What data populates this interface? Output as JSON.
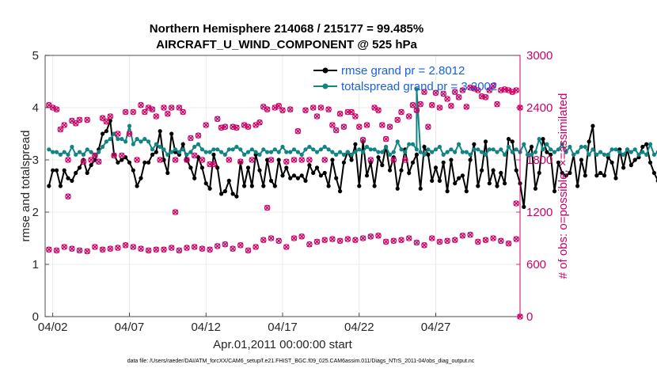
{
  "chart_data": {
    "type": "line",
    "title": "Northern Hemisphere 214068 / 215177 = 99.485%",
    "subtitle": "AIRCRAFT_U_WIND_COMPONENT @ 525 hPa",
    "xlabel": "Apr.01,2011 00:00:00 start",
    "ylabel": "rmse and totalspread",
    "y2label": "# of obs: o=possible; ×=assimilated",
    "footer": "data file: /Users/raeder/DAI/ATM_forcXX/CAM6_setup/f.e21.FHIST_BGC.f09_025.CAM6assim.011/Diags_NTrS_2011-04/obs_diag_output.nc",
    "xlim": [
      1.5,
      32.5
    ],
    "ylim": [
      0,
      5
    ],
    "y2lim": [
      0,
      3000
    ],
    "x_ticks": [
      2,
      7,
      12,
      17,
      22,
      27
    ],
    "x_tick_labels": [
      "04/02",
      "04/07",
      "04/12",
      "04/17",
      "04/22",
      "04/27"
    ],
    "y_ticks": [
      0,
      1,
      2,
      3,
      4,
      5
    ],
    "y_tick_labels": [
      "0",
      "1",
      "2",
      "3",
      "4",
      "5"
    ],
    "y2_ticks": [
      0,
      600,
      1200,
      1800,
      2400,
      3000
    ],
    "y2_tick_labels": [
      "0",
      "600",
      "1200",
      "1800",
      "2400",
      "3000"
    ],
    "x_unit": "days since Apr.01,2011 00:00:00",
    "x_step": 0.25,
    "x_start": 1.75,
    "series": [
      {
        "name": "rmse grand pr = 2.8012",
        "color": "#000000",
        "marker": "dot",
        "values": [
          2.5,
          2.8,
          2.8,
          2.5,
          2.8,
          2.65,
          2.6,
          2.75,
          2.85,
          3.0,
          2.75,
          2.9,
          3.0,
          3.2,
          3.5,
          3.55,
          3.75,
          3.1,
          2.95,
          3.0,
          3.05,
          2.95,
          2.8,
          2.5,
          2.65,
          2.95,
          2.95,
          3.1,
          3.15,
          3.55,
          3.0,
          2.75,
          3.5,
          3.15,
          3.1,
          3.3,
          3.0,
          2.85,
          2.65,
          3.05,
          2.85,
          2.55,
          2.45,
          3.1,
          2.85,
          2.35,
          2.4,
          2.6,
          2.35,
          2.3,
          2.95,
          2.5,
          2.85,
          2.5,
          3.1,
          2.8,
          2.5,
          3.0,
          2.6,
          2.5,
          3.0,
          2.7,
          2.85,
          2.65,
          2.7,
          2.65,
          2.7,
          2.6,
          2.9,
          2.75,
          2.85,
          2.7,
          2.75,
          2.5,
          3.0,
          2.65,
          2.4,
          2.95,
          3.15,
          3.0,
          3.3,
          2.5,
          3.35,
          2.7,
          2.95,
          2.5,
          3.05,
          2.9,
          3.25,
          2.8,
          3.05,
          2.45,
          2.8,
          3.2,
          2.75,
          2.95,
          3.1,
          2.45,
          3.25,
          3.1,
          2.6,
          2.85,
          2.6,
          2.95,
          2.4,
          3.0,
          2.55,
          2.65,
          2.7,
          2.4,
          3.0,
          3.3,
          2.5,
          2.8,
          3.35,
          2.55,
          2.8,
          2.5,
          2.75,
          2.55,
          3.4,
          3.35,
          2.8,
          2.55,
          2.1,
          3.1,
          3.25,
          2.45,
          2.75,
          3.4,
          3.15,
          3.1,
          2.4,
          2.95,
          2.75,
          2.7,
          2.75,
          3.1,
          2.5,
          3.0,
          2.7,
          3.35,
          3.65,
          2.7,
          2.75,
          2.7,
          3.05,
          2.95,
          2.65,
          3.2,
          2.85,
          3.2,
          2.9,
          3.0,
          3.05,
          3.25,
          3.3,
          2.95,
          2.75,
          2.6,
          3.15,
          3.0,
          3.0,
          2.75,
          3.0,
          2.6
        ]
      },
      {
        "name": "totalspread grand pr = 3.2002",
        "color": "#138484",
        "marker": "dot",
        "values": [
          3.2,
          3.15,
          3.15,
          3.1,
          3.15,
          3.1,
          3.25,
          3.1,
          3.15,
          3.1,
          3.2,
          3.15,
          3.1,
          3.15,
          3.25,
          3.35,
          3.4,
          3.5,
          3.4,
          3.4,
          3.35,
          3.65,
          3.3,
          3.4,
          3.35,
          3.4,
          3.35,
          3.2,
          3.3,
          3.25,
          3.2,
          3.1,
          3.15,
          3.2,
          3.15,
          3.2,
          3.1,
          3.15,
          3.25,
          3.3,
          3.2,
          3.15,
          3.15,
          3.2,
          3.2,
          3.15,
          3.1,
          3.2,
          3.2,
          3.25,
          3.2,
          3.1,
          3.15,
          3.2,
          3.15,
          3.1,
          3.2,
          3.15,
          3.15,
          3.2,
          3.15,
          3.25,
          3.15,
          3.15,
          3.2,
          3.15,
          3.1,
          3.2,
          3.25,
          3.2,
          3.15,
          3.2,
          3.25,
          3.2,
          3.15,
          3.1,
          3.15,
          3.1,
          3.15,
          3.1,
          3.15,
          3.2,
          3.15,
          3.25,
          3.2,
          3.2,
          3.15,
          3.15,
          3.25,
          3.1,
          3.15,
          3.35,
          3.2,
          3.15,
          3.3,
          3.3,
          3.2,
          3.15,
          3.1,
          3.2,
          3.15,
          3.2,
          3.25,
          3.1,
          3.15,
          3.2,
          3.15,
          3.3,
          3.15,
          3.15,
          3.1,
          3.2,
          3.2,
          3.15,
          3.1,
          3.2,
          3.2,
          3.15,
          3.2,
          3.1,
          3.25,
          3.15,
          3.2,
          3.15,
          3.3,
          3.1,
          3.1,
          3.15,
          3.4,
          3.2,
          3.3,
          3.2,
          3.15,
          3.2,
          3.3,
          3.15,
          3.25,
          3.1,
          3.15,
          3.25,
          3.25,
          3.1,
          3.2,
          3.1,
          3.15,
          3.1,
          3.1,
          3.2,
          3.2,
          3.15,
          3.1,
          3.2,
          3.15,
          3.2,
          3.1,
          3.15,
          3.1,
          3.3,
          3.1,
          3.15,
          3.2,
          3.1,
          3.25,
          3.2,
          3.15,
          3.2,
          3.2
        ]
      }
    ],
    "spike": {
      "x": 25.75,
      "y": 4.35,
      "series": 1
    },
    "obs_possible_color": "#cc0066",
    "obs_possible": [
      2430,
      2400,
      2380,
      2150,
      2200,
      1800,
      2250,
      2220,
      2260,
      1780,
      2260,
      1800,
      1850,
      1780,
      2280,
      2240,
      2300,
      1850,
      2100,
      1850,
      2350,
      2100,
      2350,
      1800,
      2430,
      2350,
      2400,
      2380,
      2300,
      1800,
      2400,
      2330,
      2400,
      1800,
      2400,
      2350,
      1800,
      2050,
      1850,
      2080,
      1800,
      2200,
      1750,
      1750,
      2270,
      2170,
      2180,
      1800,
      2180,
      2170,
      1780,
      2200,
      2180,
      1800,
      2200,
      2230,
      2410,
      2380,
      1800,
      2400,
      2420,
      2370,
      1780,
      2380,
      1800,
      2130,
      1800,
      2370,
      1800,
      2400,
      2300,
      2400,
      1800,
      2380,
      2200,
      2140,
      2330,
      2180,
      2350,
      2350,
      2300,
      2180,
      2030,
      2200,
      1800,
      2400,
      2370,
      2200,
      2040,
      2180,
      1800,
      2260,
      2350,
      1800,
      2300,
      2430,
      2370,
      2440,
      2580,
      2180,
      2430,
      2570,
      2400,
      2560,
      2500,
      2420,
      2580,
      2520,
      2600,
      2410,
      2630,
      2620,
      2600,
      2530,
      2520,
      2600,
      2650,
      2440,
      2600,
      2610,
      2600,
      2580,
      2600,
      2400,
      2580,
      2580,
      2600,
      2400,
      2570,
      2580,
      2400
    ],
    "obs_possible_low": [
      770,
      760,
      800,
      780,
      760,
      750,
      800,
      770,
      780,
      790,
      820,
      800,
      780,
      760,
      770,
      770,
      790,
      760,
      790,
      800,
      780,
      770,
      810,
      830,
      780,
      820,
      760,
      800,
      880,
      900,
      870,
      800,
      900,
      920,
      830,
      860,
      880,
      890,
      870,
      890,
      880,
      900,
      920,
      930,
      860,
      870,
      880,
      900,
      850,
      820,
      900,
      860,
      870,
      880,
      930,
      940,
      860,
      880,
      900,
      870,
      840,
      890,
      900,
      930,
      940,
      900
    ],
    "obs_low_count_note": "lower obs band ~600-950 throughout",
    "obs_extra": [
      {
        "x": 32.25,
        "y": 1300
      },
      {
        "x": 32.5,
        "y": 0
      },
      {
        "x": 10.0,
        "y": 1200
      },
      {
        "x": 16.0,
        "y": 1250
      },
      {
        "x": 3.0,
        "y": 1380
      }
    ]
  }
}
